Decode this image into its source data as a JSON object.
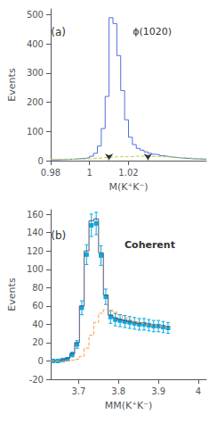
{
  "chart_data": [
    {
      "type": "histogram",
      "xlabel": "M(K⁺K⁻)",
      "ylabel": "Events",
      "annotations": [
        {
          "text": "(a)"
        },
        {
          "text": "ϕ(1020)"
        }
      ],
      "xlim": [
        0.98,
        1.06
      ],
      "ylim": [
        0,
        520
      ],
      "xticks": [
        0.98,
        1,
        1.02
      ],
      "yticks": [
        0,
        100,
        200,
        300,
        400,
        500
      ],
      "grid": false,
      "bins": [
        0.98,
        0.982,
        0.984,
        0.986,
        0.988,
        0.99,
        0.992,
        0.994,
        0.996,
        0.998,
        1.0,
        1.002,
        1.004,
        1.006,
        1.008,
        1.01,
        1.012,
        1.014,
        1.016,
        1.018,
        1.02,
        1.022,
        1.024,
        1.026,
        1.028,
        1.03,
        1.032,
        1.034,
        1.036,
        1.038,
        1.04,
        1.042,
        1.044,
        1.046,
        1.048,
        1.05,
        1.052,
        1.054,
        1.056,
        1.058,
        1.06
      ],
      "series": [
        {
          "type": "step",
          "line_style": "solid",
          "values": [
            3,
            3,
            4,
            4,
            5,
            5,
            6,
            7,
            8,
            10,
            15,
            25,
            50,
            110,
            220,
            490,
            470,
            360,
            240,
            140,
            80,
            55,
            42,
            36,
            30,
            25,
            22,
            20,
            17,
            15,
            13,
            11,
            10,
            9,
            8,
            7,
            6,
            6,
            5,
            5
          ]
        },
        {
          "type": "step",
          "line_style": "dashed",
          "values": [
            4,
            4,
            4,
            4,
            4,
            5,
            5,
            5,
            6,
            6,
            7,
            8,
            9,
            10,
            11,
            12,
            13,
            13,
            14,
            14,
            14,
            15,
            15,
            15,
            15,
            15,
            14,
            14,
            13,
            13,
            12,
            12,
            11,
            10,
            10,
            9,
            8,
            8,
            7,
            7
          ]
        }
      ],
      "arrows": [
        {
          "x": 1.01,
          "y_from": 18,
          "y_to": 2
        },
        {
          "x": 1.03,
          "y_from": 18,
          "y_to": 2
        }
      ]
    },
    {
      "type": "histogram",
      "xlabel": "MM(K⁺K⁻)",
      "ylabel": "Events",
      "annotations": [
        {
          "text": "(b)"
        },
        {
          "text": "Coherent"
        }
      ],
      "xlim": [
        3.63,
        4.02
      ],
      "ylim": [
        -20,
        165
      ],
      "xticks": [
        3.7,
        3.8,
        3.9,
        4
      ],
      "yticks": [
        -20,
        0,
        20,
        40,
        60,
        80,
        100,
        120,
        140,
        160
      ],
      "grid": false,
      "bins": [
        3.63,
        3.642,
        3.654,
        3.666,
        3.678,
        3.69,
        3.702,
        3.714,
        3.726,
        3.738,
        3.75,
        3.762,
        3.774,
        3.786,
        3.798,
        3.81,
        3.822,
        3.834,
        3.846,
        3.858,
        3.87,
        3.882,
        3.894,
        3.906,
        3.918,
        3.93
      ],
      "series": [
        {
          "type": "step",
          "line_style": "solid",
          "values": [
            0,
            0,
            1,
            3,
            8,
            20,
            60,
            120,
            153,
            155,
            118,
            72,
            50,
            47,
            45,
            44,
            43,
            42,
            41,
            41,
            40,
            39,
            38,
            38,
            37
          ]
        },
        {
          "type": "step",
          "line_style": "dashed",
          "values": [
            0,
            0,
            0,
            0,
            1,
            2,
            5,
            14,
            28,
            42,
            52,
            56,
            55,
            53,
            50,
            47,
            45,
            43,
            42,
            41,
            40,
            39,
            38,
            38,
            37
          ]
        },
        {
          "type": "scatter",
          "marker": "square",
          "x": [
            3.636,
            3.648,
            3.66,
            3.672,
            3.684,
            3.696,
            3.708,
            3.72,
            3.732,
            3.744,
            3.756,
            3.768,
            3.78,
            3.792,
            3.804,
            3.816,
            3.828,
            3.84,
            3.852,
            3.864,
            3.876,
            3.888,
            3.9,
            3.912,
            3.924
          ],
          "values": [
            0,
            0,
            1,
            2,
            7,
            18,
            58,
            116,
            148,
            150,
            115,
            70,
            48,
            45,
            44,
            43,
            42,
            41,
            40,
            40,
            39,
            38,
            38,
            37,
            36
          ],
          "errors": [
            0.5,
            0.5,
            1.0,
            1.5,
            2.6,
            4.2,
            7.6,
            10.8,
            12.2,
            12.2,
            10.7,
            8.4,
            6.9,
            6.7,
            6.6,
            6.6,
            6.5,
            6.4,
            6.3,
            6.3,
            6.2,
            6.2,
            6.2,
            6.1,
            6.0
          ]
        }
      ]
    }
  ]
}
